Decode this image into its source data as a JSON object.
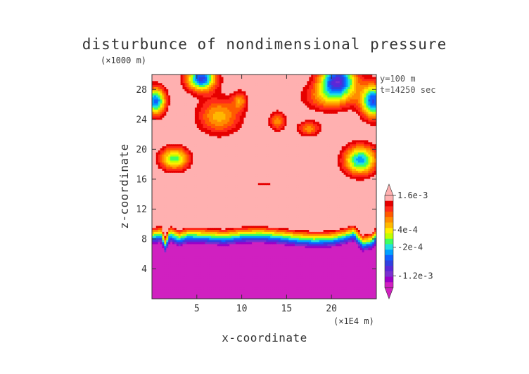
{
  "chart_data": {
    "type": "heatmap",
    "title": "disturbunce of nondimensional pressure",
    "xlabel": "x-coordinate",
    "ylabel": "z-coordinate",
    "x_unit": "(×1E4 m)",
    "y_unit": "(×1000 m)",
    "xlim": [
      0,
      25
    ],
    "ylim": [
      0,
      30
    ],
    "x_ticks": [
      "5",
      "10",
      "15",
      "20"
    ],
    "y_ticks": [
      "4",
      "8",
      "12",
      "16",
      "20",
      "24",
      "28"
    ],
    "x_tick_values": [
      5,
      10,
      15,
      20
    ],
    "y_tick_values": [
      4,
      8,
      12,
      16,
      20,
      24,
      28
    ],
    "annotations": [
      "y=100 m",
      "t=14250 sec"
    ],
    "colorbar": {
      "labels": [
        "1.6e-3",
        "4e-4",
        "-2e-4",
        "-1.2e-3"
      ],
      "label_values": [
        0.0016,
        0.0004,
        -0.0002,
        -0.0012
      ],
      "levels": [
        -0.0016,
        -0.0014,
        -0.0012,
        -0.001,
        -0.0008,
        -0.0006,
        -0.0004,
        -0.0002,
        0.0,
        0.0002,
        0.0004,
        0.0006,
        0.0008,
        0.001,
        0.0012,
        0.0014,
        0.0016
      ],
      "colors": [
        "#d020c0",
        "#9b00c8",
        "#7a30d0",
        "#5a28d8",
        "#3040e0",
        "#1060ff",
        "#00a0ff",
        "#20e0e0",
        "#40ff60",
        "#c0ff00",
        "#ffee00",
        "#ffb800",
        "#ff8c00",
        "#ff5a00",
        "#ff2a1a",
        "#e60000",
        "#ffb0b0"
      ]
    },
    "background_value": 0.0017,
    "layer": {
      "description": "boundary",
      "profile_x": [
        0,
        1,
        1.5,
        2,
        3,
        4,
        6,
        8,
        10,
        12,
        14,
        16,
        18,
        20,
        21.5,
        22.5,
        23.5,
        24.5,
        25
      ],
      "profile_z": [
        8.6,
        8.8,
        7.4,
        8.9,
        8.3,
        8.7,
        8.6,
        8.4,
        8.7,
        8.8,
        8.6,
        8.3,
        8.1,
        8.2,
        8.6,
        9.0,
        7.6,
        7.9,
        8.6
      ]
    },
    "features": [
      {
        "x": 0.4,
        "z": 26.5,
        "rx": 1.1,
        "rz": 1.8,
        "amp": 0.0024
      },
      {
        "x": 5.5,
        "z": 29.5,
        "rx": 1.6,
        "rz": 1.6,
        "amp": 0.0026
      },
      {
        "x": 20.7,
        "z": 29.3,
        "rx": 2.0,
        "rz": 2.0,
        "amp": 0.0027
      },
      {
        "x": 24.7,
        "z": 26.5,
        "rx": 1.4,
        "rz": 2.2,
        "amp": 0.0025
      },
      {
        "x": 7.5,
        "z": 24.5,
        "rx": 2.4,
        "rz": 2.4,
        "amp": 0.0012
      },
      {
        "x": 9.8,
        "z": 26.6,
        "rx": 0.8,
        "rz": 1.2,
        "amp": 0.0009
      },
      {
        "x": 14.0,
        "z": 23.8,
        "rx": 0.9,
        "rz": 1.3,
        "amp": 0.001
      },
      {
        "x": 17.5,
        "z": 22.8,
        "rx": 1.3,
        "rz": 1.0,
        "amp": 0.001
      },
      {
        "x": 19.8,
        "z": 27.0,
        "rx": 2.8,
        "rz": 1.8,
        "amp": 0.0011
      },
      {
        "x": 2.5,
        "z": 18.8,
        "rx": 1.6,
        "rz": 1.5,
        "amp": 0.0018
      },
      {
        "x": 23.2,
        "z": 18.6,
        "rx": 1.8,
        "rz": 1.9,
        "amp": 0.0022
      },
      {
        "x": 12.5,
        "z": 15.4,
        "rx": 0.9,
        "rz": 0.35,
        "amp": 0.0005
      }
    ]
  }
}
